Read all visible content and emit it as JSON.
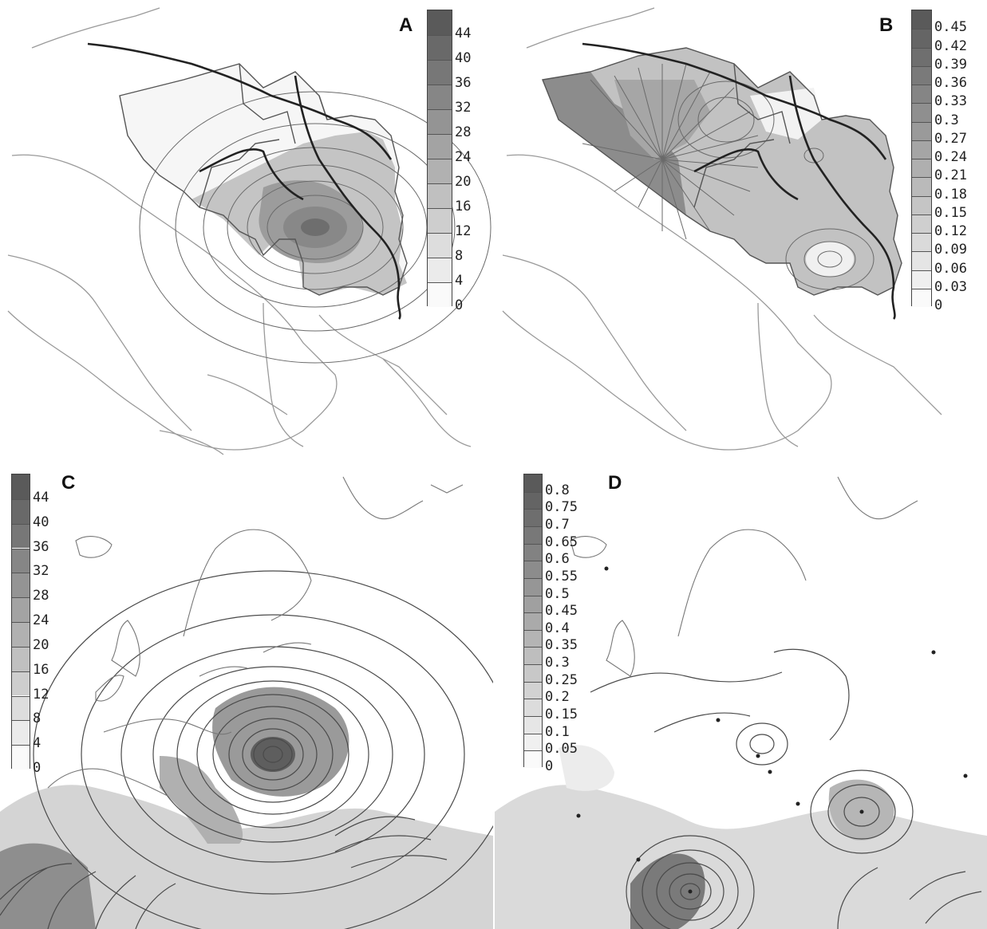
{
  "panels": [
    {
      "id": "A",
      "label": "A",
      "legend_ticks": [
        "44",
        "40",
        "36",
        "32",
        "28",
        "24",
        "20",
        "16",
        "12",
        "8",
        "4",
        "0"
      ],
      "legend_range": [
        0,
        48
      ],
      "region": "Western Balkans"
    },
    {
      "id": "B",
      "label": "B",
      "legend_ticks": [
        "0.45",
        "0.42",
        "0.39",
        "0.36",
        "0.33",
        "0.3",
        "0.27",
        "0.24",
        "0.21",
        "0.18",
        "0.15",
        "0.12",
        "0.09",
        "0.06",
        "0.03",
        "0"
      ],
      "legend_range": [
        0,
        0.48
      ],
      "region": "Western Balkans"
    },
    {
      "id": "C",
      "label": "C",
      "legend_ticks": [
        "44",
        "40",
        "36",
        "32",
        "28",
        "24",
        "20",
        "16",
        "12",
        "8",
        "4",
        "0"
      ],
      "legend_range": [
        0,
        48
      ],
      "region": "Europe"
    },
    {
      "id": "D",
      "label": "D",
      "legend_ticks": [
        "0.8",
        "0.75",
        "0.7",
        "0.65",
        "0.6",
        "0.55",
        "0.5",
        "0.45",
        "0.4",
        "0.35",
        "0.3",
        "0.25",
        "0.2",
        "0.15",
        "0.1",
        "0.05",
        "0"
      ],
      "legend_range": [
        0,
        0.85
      ],
      "region": "Europe"
    }
  ],
  "colors": {
    "coast": "#9a9a9a",
    "border": "#555555",
    "river": "#222222",
    "shade_light": "#e4e4e4",
    "shade_mid": "#b8b8b8",
    "shade_dark": "#7d7d7d"
  }
}
